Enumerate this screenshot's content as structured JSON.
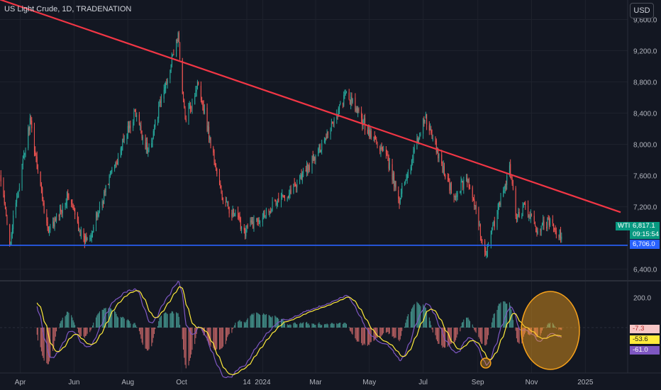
{
  "header": {
    "title": "US Light Crude, 1D, TRADENATION",
    "currency_button": "USD"
  },
  "colors": {
    "background": "#131722",
    "up": "#26a69a",
    "down": "#ef5350",
    "trendline": "#f23645",
    "support": "#2962ff",
    "signal": "#ffeb3b",
    "macd": "#7e57c2",
    "highlight": "#f7a21b"
  },
  "chart_data": [
    {
      "type": "candlestick",
      "title": "US Light Crude, 1D, TRADENATION",
      "ylim": [
        6260,
        9850
      ],
      "y_ticks": [
        "9,600.0",
        "9,200.0",
        "8,800.0",
        "8,400.0",
        "8,000.0",
        "7,600.0",
        "7,200.0",
        "6,400.0"
      ],
      "x_ticks": [
        "Apr",
        "Jun",
        "Aug",
        "Oct",
        "14",
        "2024",
        "Mar",
        "May",
        "Jul",
        "Sep",
        "Nov",
        "2025"
      ],
      "x_tick_positions": [
        "2023-04-01",
        "2023-06-01",
        "2023-08-01",
        "2023-10-01",
        "2023-12-14",
        "2024-01-01",
        "2024-03-01",
        "2024-05-01",
        "2024-07-01",
        "2024-09-01",
        "2024-11-01",
        "2025-01-01"
      ],
      "x_range": [
        "2023-03-09",
        "2025-02-18"
      ],
      "close_anchors": [
        {
          "date": "2023-03-09",
          "close": 7600
        },
        {
          "date": "2023-03-20",
          "close": 6750
        },
        {
          "date": "2023-04-12",
          "close": 8300
        },
        {
          "date": "2023-05-03",
          "close": 6850
        },
        {
          "date": "2023-05-25",
          "close": 7350
        },
        {
          "date": "2023-06-12",
          "close": 6750
        },
        {
          "date": "2023-06-22",
          "close": 6900
        },
        {
          "date": "2023-07-12",
          "close": 7600
        },
        {
          "date": "2023-08-09",
          "close": 8400
        },
        {
          "date": "2023-08-24",
          "close": 7900
        },
        {
          "date": "2023-09-27",
          "close": 9400
        },
        {
          "date": "2023-10-05",
          "close": 8300
        },
        {
          "date": "2023-10-20",
          "close": 8800
        },
        {
          "date": "2023-11-16",
          "close": 7300
        },
        {
          "date": "2023-12-12",
          "close": 6900
        },
        {
          "date": "2024-01-10",
          "close": 7200
        },
        {
          "date": "2024-02-01",
          "close": 7400
        },
        {
          "date": "2024-02-28",
          "close": 7800
        },
        {
          "date": "2024-04-05",
          "close": 8650
        },
        {
          "date": "2024-05-01",
          "close": 8150
        },
        {
          "date": "2024-05-20",
          "close": 7850
        },
        {
          "date": "2024-06-04",
          "close": 7300
        },
        {
          "date": "2024-07-03",
          "close": 8350
        },
        {
          "date": "2024-08-05",
          "close": 7300
        },
        {
          "date": "2024-08-19",
          "close": 7600
        },
        {
          "date": "2024-09-10",
          "close": 6600
        },
        {
          "date": "2024-10-07",
          "close": 7700
        },
        {
          "date": "2024-10-15",
          "close": 7050
        },
        {
          "date": "2024-10-25",
          "close": 7200
        },
        {
          "date": "2024-11-06",
          "close": 6900
        },
        {
          "date": "2024-11-20",
          "close": 7000
        },
        {
          "date": "2024-12-05",
          "close": 6817
        }
      ],
      "last_price": {
        "symbol": "WTI",
        "value": "6,817.1",
        "countdown": "09:15:54"
      },
      "support_line": {
        "value": 6706,
        "label": "6,706.0"
      },
      "trendline": {
        "from": {
          "date": "2023-02-10",
          "price": 9960
        },
        "to": {
          "date": "2025-02-10",
          "price": 7130
        }
      }
    },
    {
      "type": "histogram-oscillator",
      "ylim": [
        -300,
        300
      ],
      "y_ticks": [
        "200.0"
      ],
      "values": {
        "histogram": "-7.3",
        "signal": "-53.6",
        "macd": "-61.0"
      }
    }
  ]
}
